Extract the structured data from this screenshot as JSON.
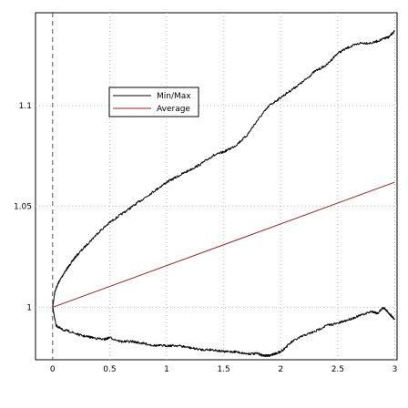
{
  "chart_data": {
    "type": "line",
    "title": "",
    "xlabel": "",
    "ylabel": "",
    "xlim": [
      -0.15,
      3.02
    ],
    "ylim": [
      0.974,
      1.146
    ],
    "grid": true,
    "legend_position": "top-left",
    "xticks": [
      0,
      0.5,
      1,
      1.5,
      2,
      2.5,
      3
    ],
    "xtick_labels": [
      "0",
      "0.5",
      "1",
      "1.5",
      "2",
      "2.5",
      "3"
    ],
    "yticks": [
      1,
      1.05,
      1.1
    ],
    "ytick_labels": [
      "1",
      "1.05",
      "1.1"
    ],
    "legend": [
      {
        "label": "Min/Max",
        "color": "#000000"
      },
      {
        "label": "Average",
        "color": "#a01e1e"
      }
    ],
    "series": [
      {
        "name": "Min/Max",
        "role": "max",
        "color": "#000000",
        "x": [
          0,
          0.02,
          0.05,
          0.1,
          0.15,
          0.2,
          0.3,
          0.4,
          0.5,
          0.6,
          0.7,
          0.8,
          0.9,
          1.0,
          1.1,
          1.2,
          1.3,
          1.4,
          1.5,
          1.6,
          1.7,
          1.8,
          1.9,
          2.0,
          2.1,
          2.2,
          2.3,
          2.4,
          2.5,
          2.6,
          2.7,
          2.8,
          2.9,
          2.95,
          3.0
        ],
        "y": [
          1.0,
          1.008,
          1.012,
          1.017,
          1.021,
          1.025,
          1.031,
          1.037,
          1.042,
          1.046,
          1.05,
          1.054,
          1.058,
          1.062,
          1.065,
          1.068,
          1.071,
          1.075,
          1.077,
          1.08,
          1.085,
          1.093,
          1.1,
          1.104,
          1.108,
          1.112,
          1.117,
          1.12,
          1.126,
          1.129,
          1.131,
          1.131,
          1.133,
          1.134,
          1.137
        ]
      },
      {
        "name": "Min/Max",
        "role": "min",
        "color": "#000000",
        "x": [
          0,
          0.03,
          0.08,
          0.15,
          0.25,
          0.35,
          0.45,
          0.5,
          0.6,
          0.7,
          0.8,
          0.9,
          1.0,
          1.1,
          1.2,
          1.3,
          1.4,
          1.5,
          1.6,
          1.7,
          1.8,
          1.85,
          1.9,
          1.95,
          2.0,
          2.1,
          2.2,
          2.3,
          2.4,
          2.5,
          2.6,
          2.7,
          2.8,
          2.85,
          2.9,
          2.95,
          3.0
        ],
        "y": [
          1.0,
          0.991,
          0.989,
          0.988,
          0.986,
          0.985,
          0.984,
          0.985,
          0.983,
          0.983,
          0.982,
          0.981,
          0.981,
          0.981,
          0.98,
          0.979,
          0.979,
          0.978,
          0.978,
          0.977,
          0.977,
          0.976,
          0.976,
          0.977,
          0.978,
          0.983,
          0.986,
          0.988,
          0.991,
          0.992,
          0.994,
          0.996,
          0.998,
          0.997,
          1.0,
          0.997,
          0.994
        ]
      },
      {
        "name": "Average",
        "role": "average",
        "color": "#a01e1e",
        "x": [
          0,
          3
        ],
        "y": [
          1.0,
          1.062
        ]
      }
    ]
  }
}
